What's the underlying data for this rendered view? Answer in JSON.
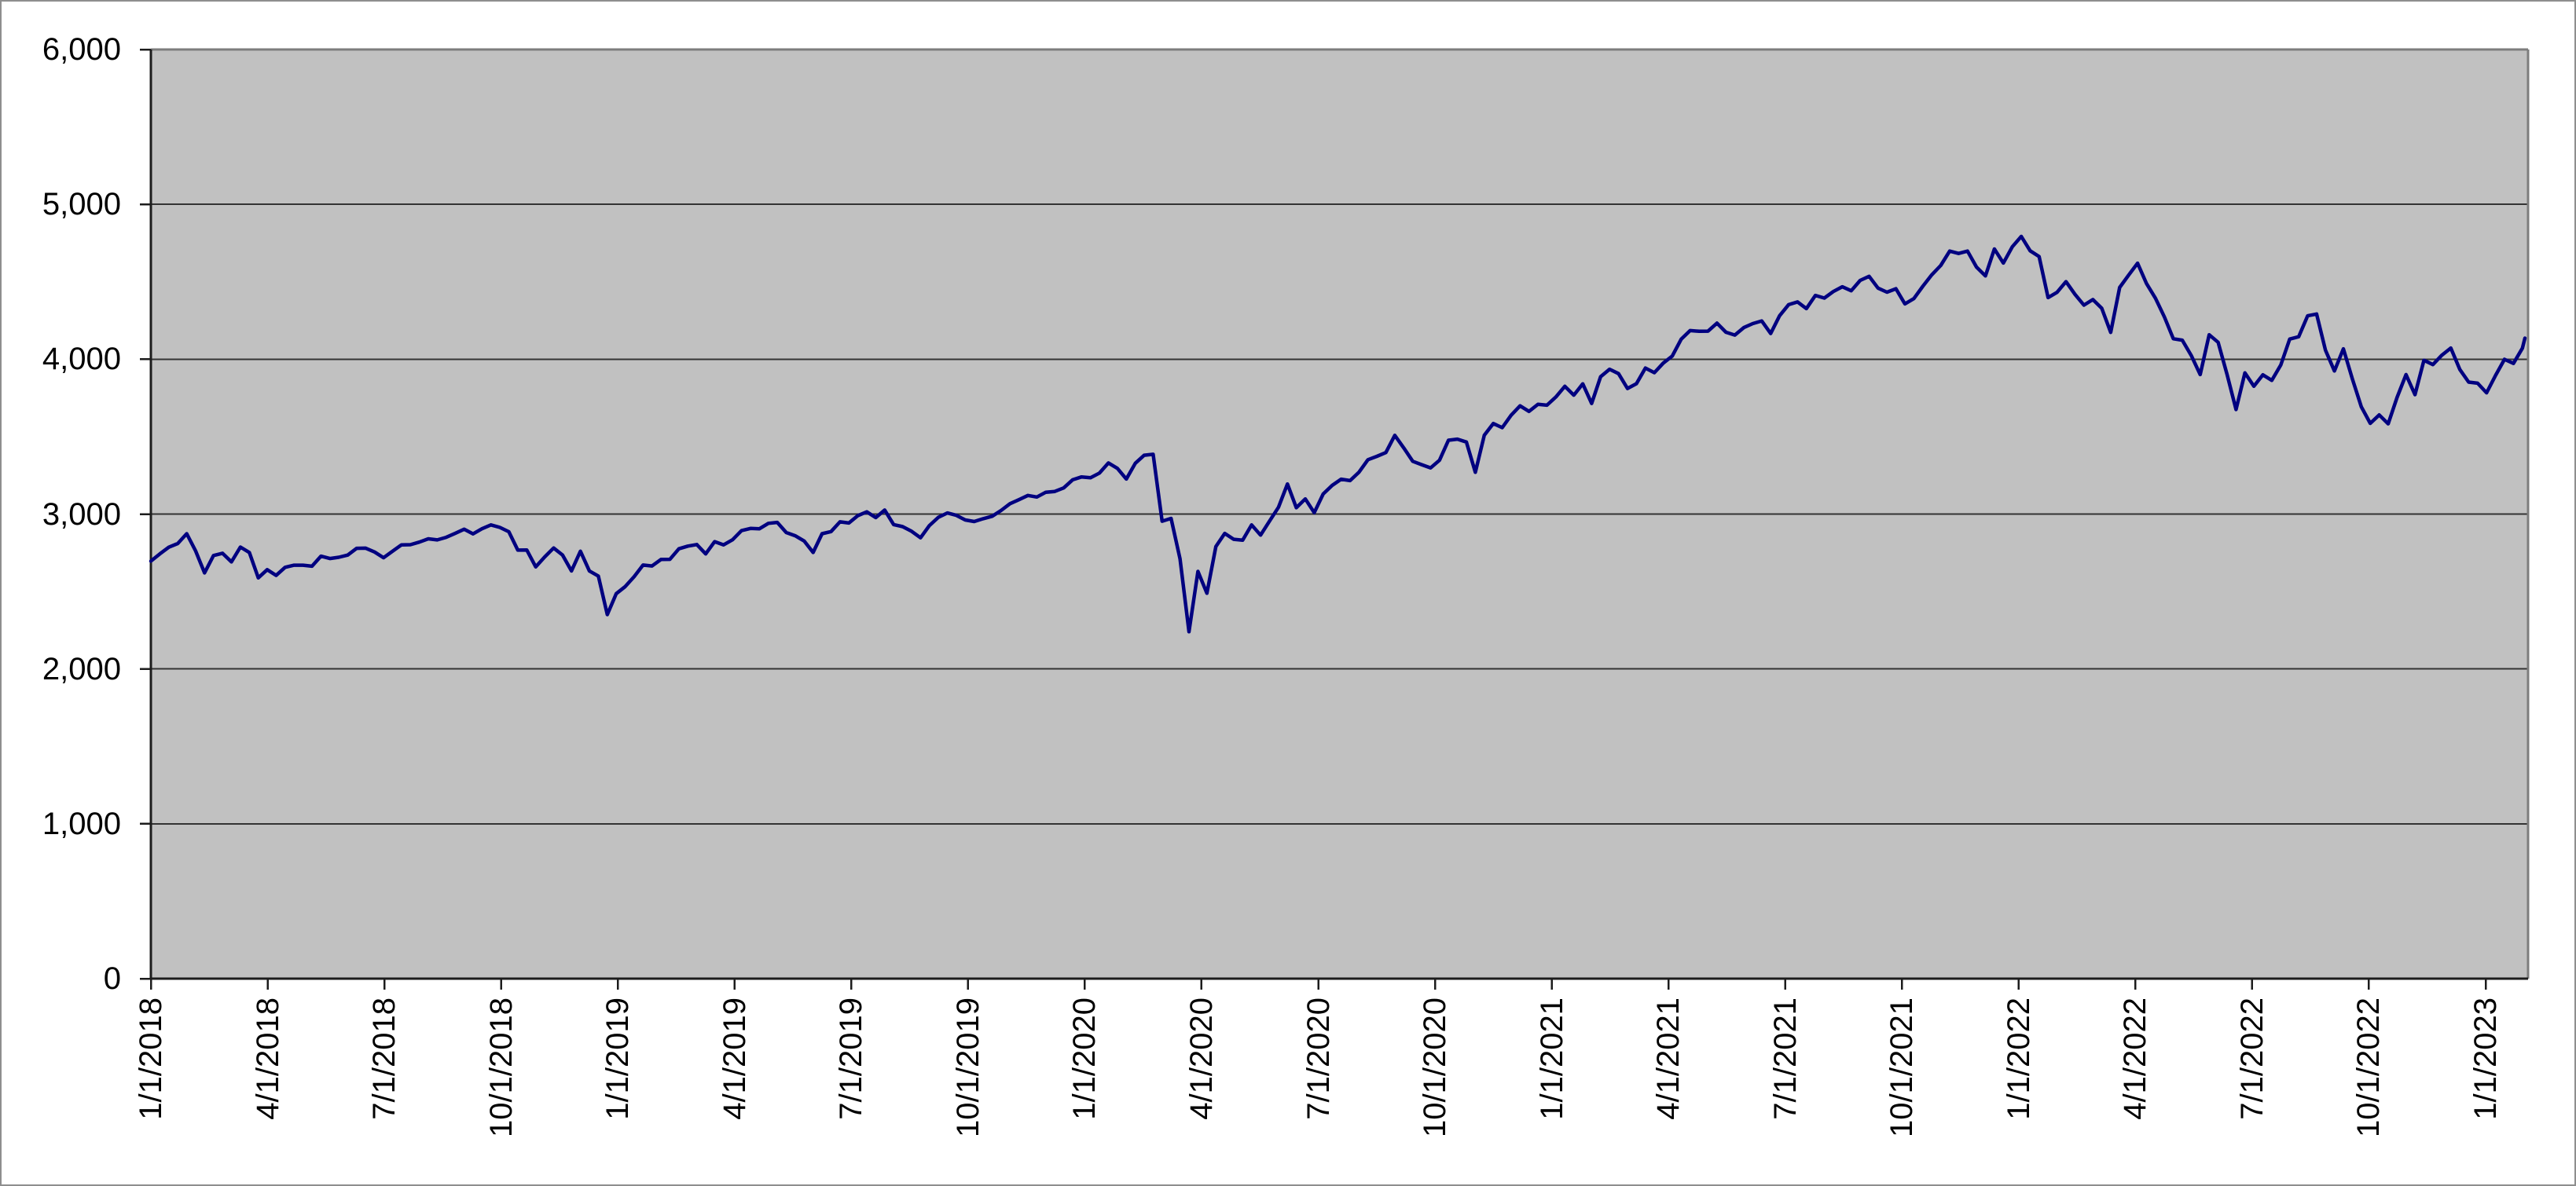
{
  "chart_data": {
    "type": "line",
    "title": "",
    "legend": "none",
    "grid": "horizontal",
    "plot_background": "#c1c1c1",
    "line_color": "#000080",
    "grid_color": "#333333",
    "axis_color": "#1c1c1c",
    "plot_border_color": "#7d7d7d",
    "y_axis": {
      "min": 0,
      "max": 6000,
      "tick_step": 1000,
      "tick_labels": [
        "0",
        "1,000",
        "2,000",
        "3,000",
        "4,000",
        "5,000",
        "6,000"
      ]
    },
    "x_axis": {
      "tick_interval": "quarterly",
      "tick_labels": [
        "1/1/2018",
        "4/1/2018",
        "7/1/2018",
        "10/1/2018",
        "1/1/2019",
        "4/1/2019",
        "7/1/2019",
        "10/1/2019",
        "1/1/2020",
        "4/1/2020",
        "7/1/2020",
        "10/1/2020",
        "1/1/2021",
        "4/1/2021",
        "7/1/2021",
        "10/1/2021",
        "1/1/2022",
        "4/1/2022",
        "7/1/2022",
        "10/1/2022",
        "1/1/2023"
      ]
    },
    "series": [
      {
        "cadence": "weekly",
        "start": "1/1/2018",
        "values": [
          2696,
          2743,
          2786,
          2810,
          2873,
          2762,
          2620,
          2732,
          2747,
          2691,
          2787,
          2752,
          2588,
          2641,
          2604,
          2656,
          2670,
          2670,
          2663,
          2728,
          2713,
          2721,
          2735,
          2779,
          2780,
          2755,
          2718,
          2760,
          2801,
          2802,
          2819,
          2840,
          2833,
          2850,
          2875,
          2902,
          2872,
          2905,
          2930,
          2914,
          2886,
          2767,
          2768,
          2659,
          2723,
          2781,
          2736,
          2633,
          2760,
          2633,
          2600,
          2351,
          2486,
          2532,
          2596,
          2671,
          2665,
          2707,
          2708,
          2776,
          2793,
          2803,
          2743,
          2822,
          2801,
          2834,
          2893,
          2907,
          2905,
          2940,
          2946,
          2881,
          2860,
          2826,
          2752,
          2873,
          2887,
          2950,
          2942,
          2990,
          3014,
          2977,
          3026,
          2932,
          2919,
          2889,
          2847,
          2926,
          2979,
          3007,
          2992,
          2962,
          2952,
          2970,
          2986,
          3023,
          3067,
          3093,
          3120,
          3110,
          3141,
          3146,
          3169,
          3221,
          3240,
          3235,
          3265,
          3330,
          3295,
          3226,
          3328,
          3380,
          3386,
          2954,
          2972,
          2711,
          2240,
          2630,
          2489,
          2790,
          2875,
          2837,
          2831,
          2930,
          2864,
          2955,
          3044,
          3194,
          3041,
          3098,
          3009,
          3130,
          3185,
          3225,
          3216,
          3271,
          3351,
          3373,
          3397,
          3508,
          3427,
          3341,
          3319,
          3298,
          3348,
          3477,
          3484,
          3465,
          3270,
          3509,
          3585,
          3558,
          3638,
          3699,
          3663,
          3709,
          3703,
          3756,
          3825,
          3768,
          3841,
          3714,
          3887,
          3935,
          3907,
          3811,
          3842,
          3943,
          3913,
          3975,
          4020,
          4129,
          4185,
          4180,
          4181,
          4233,
          4174,
          4156,
          4204,
          4230,
          4247,
          4166,
          4281,
          4352,
          4370,
          4327,
          4412,
          4395,
          4437,
          4468,
          4442,
          4509,
          4535,
          4459,
          4433,
          4455,
          4357,
          4391,
          4471,
          4545,
          4605,
          4698,
          4683,
          4698,
          4595,
          4538,
          4712,
          4621,
          4726,
          4793,
          4700,
          4663,
          4398,
          4432,
          4501,
          4419,
          4349,
          4385,
          4329,
          4173,
          4463,
          4543,
          4620,
          4488,
          4393,
          4272,
          4132,
          4123,
          4024,
          3901,
          4158,
          4109,
          3901,
          3675,
          3912,
          3825,
          3899,
          3863,
          3962,
          4130,
          4145,
          4280,
          4292,
          4058,
          3924,
          4067,
          3873,
          3693,
          3586,
          3640,
          3583,
          3753,
          3901,
          3771,
          3993,
          3965,
          4026,
          4072,
          3934,
          3852,
          3845,
          3783,
          3895,
          3999,
          3973,
          4071,
          4136
        ]
      }
    ]
  }
}
